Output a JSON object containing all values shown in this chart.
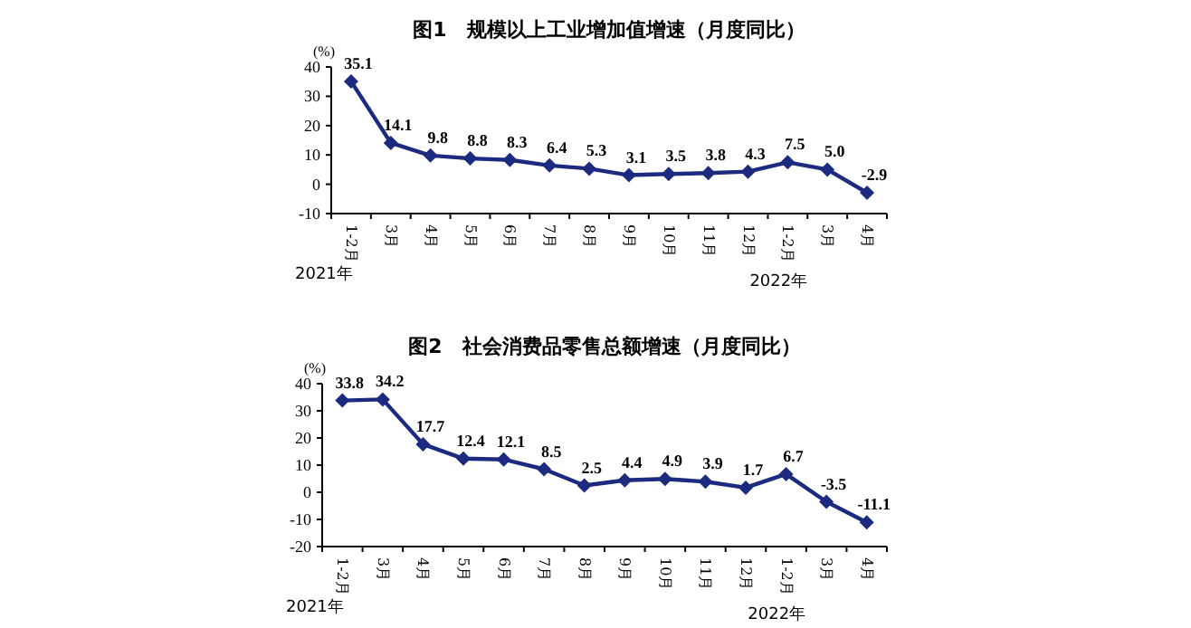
{
  "chart_data": [
    {
      "type": "line",
      "title": "图1　规模以上工业增加值增速（月度同比）",
      "ylabel": "(%)",
      "categories": [
        "1-2月",
        "3月",
        "4月",
        "5月",
        "6月",
        "7月",
        "8月",
        "9月",
        "10月",
        "11月",
        "12月",
        "1-2月",
        "3月",
        "4月"
      ],
      "series": [
        {
          "color": "#1c2a80",
          "values": [
            35.1,
            14.1,
            9.8,
            8.8,
            8.3,
            6.4,
            5.3,
            3.1,
            3.5,
            3.8,
            4.3,
            7.5,
            5.0,
            -2.9
          ],
          "value_labels": [
            "35.1",
            "14.1",
            "9.8",
            "8.8",
            "8.3",
            "6.4",
            "5.3",
            "3.1",
            "3.5",
            "3.8",
            "4.3",
            "7.5",
            "5.0",
            "-2.9"
          ]
        }
      ],
      "ylim": [
        -10,
        40
      ],
      "yticks": [
        -10,
        0,
        10,
        20,
        30,
        40
      ],
      "marker": "diamond",
      "annotations": [
        "2021年",
        "2022年"
      ]
    },
    {
      "type": "line",
      "title": "图2　社会消费品零售总额增速（月度同比）",
      "ylabel": "(%)",
      "categories": [
        "1-2月",
        "3月",
        "4月",
        "5月",
        "6月",
        "7月",
        "8月",
        "9月",
        "10月",
        "11月",
        "12月",
        "1-2月",
        "3月",
        "4月"
      ],
      "series": [
        {
          "color": "#1c2a80",
          "values": [
            33.8,
            34.2,
            17.7,
            12.4,
            12.1,
            8.5,
            2.5,
            4.4,
            4.9,
            3.9,
            1.7,
            6.7,
            -3.5,
            -11.1
          ],
          "value_labels": [
            "33.8",
            "34.2",
            "17.7",
            "12.4",
            "12.1",
            "8.5",
            "2.5",
            "4.4",
            "4.9",
            "3.9",
            "1.7",
            "6.7",
            "-3.5",
            "-11.1"
          ]
        }
      ],
      "ylim": [
        -20,
        40
      ],
      "yticks": [
        -20,
        -10,
        0,
        10,
        20,
        30,
        40
      ],
      "marker": "diamond",
      "annotations": [
        "2021年",
        "2022年"
      ]
    }
  ]
}
